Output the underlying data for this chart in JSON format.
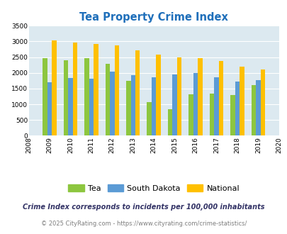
{
  "title": "Tea Property Crime Index",
  "years": [
    2008,
    2009,
    2010,
    2011,
    2012,
    2013,
    2014,
    2015,
    2016,
    2017,
    2018,
    2019,
    2020
  ],
  "tea": [
    null,
    2470,
    2395,
    2460,
    2290,
    1750,
    1060,
    840,
    1320,
    1350,
    1290,
    1610,
    null
  ],
  "south_dakota": [
    null,
    1700,
    1840,
    1810,
    2040,
    1920,
    1870,
    1940,
    1990,
    1870,
    1720,
    1760,
    null
  ],
  "national": [
    null,
    3030,
    2955,
    2910,
    2865,
    2725,
    2590,
    2495,
    2465,
    2375,
    2200,
    2100,
    null
  ],
  "tea_color": "#8dc63f",
  "sd_color": "#5b9bd5",
  "national_color": "#ffc000",
  "bg_color": "#dce9f0",
  "ylim": [
    0,
    3500
  ],
  "yticks": [
    0,
    500,
    1000,
    1500,
    2000,
    2500,
    3000,
    3500
  ],
  "bar_width": 0.22,
  "legend_labels": [
    "Tea",
    "South Dakota",
    "National"
  ],
  "footnote1": "Crime Index corresponds to incidents per 100,000 inhabitants",
  "footnote2": "© 2025 CityRating.com - https://www.cityrating.com/crime-statistics/",
  "title_color": "#1f6fba",
  "footnote1_color": "#333366",
  "footnote2_color": "#7f7f7f"
}
